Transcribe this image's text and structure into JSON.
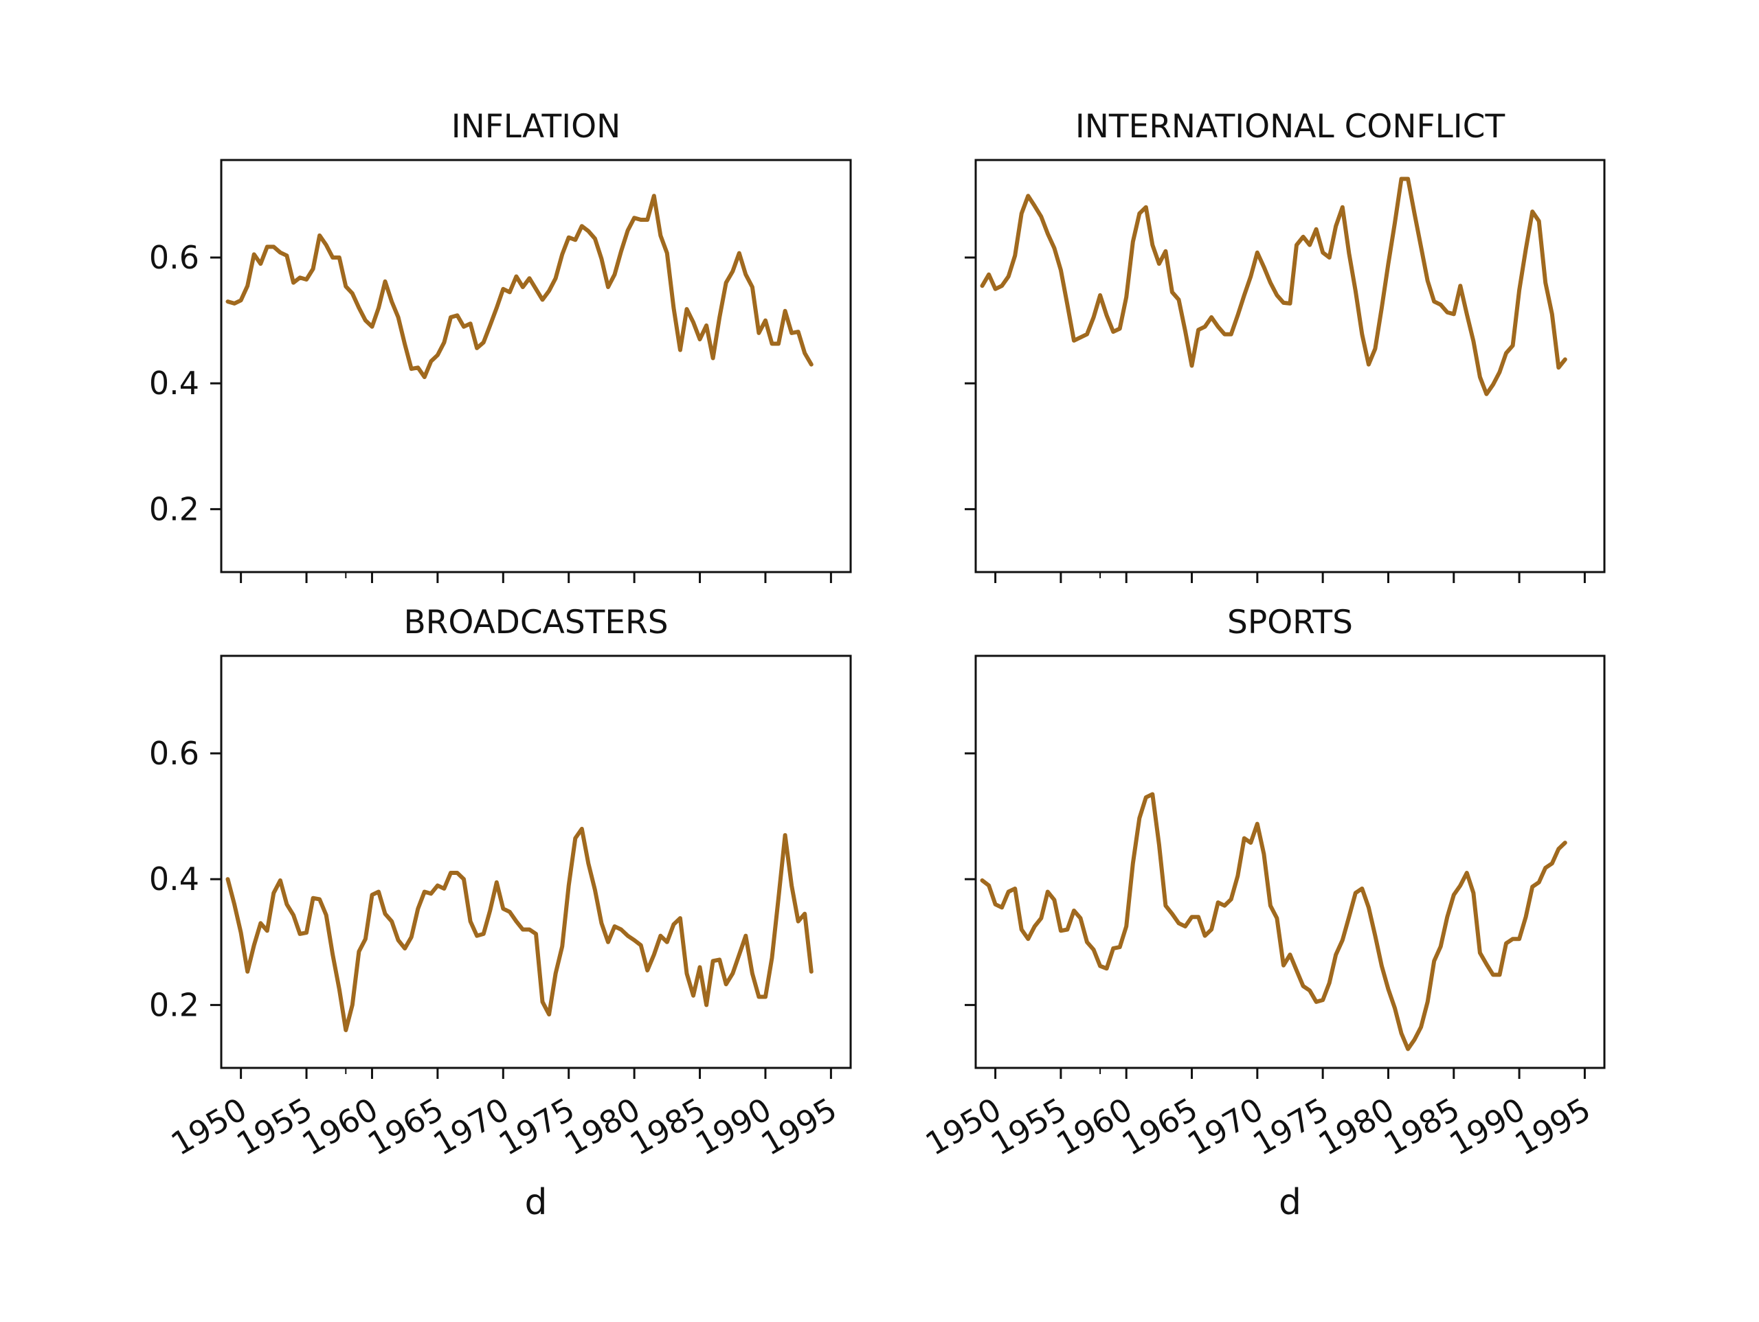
{
  "chart_data": {
    "type": "line",
    "layout": "2x2 small multiples, shared x and y axes",
    "series_color": "#A0691E",
    "grid": false,
    "xlim_years": [
      1948.5,
      1996.5
    ],
    "ylim": [
      0.1,
      0.755
    ],
    "x_ticks": [
      "1950",
      "1955",
      "1960",
      "1965",
      "1970",
      "1975",
      "1980",
      "1985",
      "1990",
      "1995"
    ],
    "y_ticks": [
      "0.2",
      "0.4",
      "0.6"
    ],
    "xlabel": "d",
    "x_start_year": 1949.0,
    "x_step_years": 0.5,
    "panels": [
      {
        "title": "INFLATION",
        "values": [
          0.53,
          0.527,
          0.532,
          0.555,
          0.605,
          0.59,
          0.617,
          0.617,
          0.608,
          0.603,
          0.56,
          0.568,
          0.565,
          0.582,
          0.635,
          0.62,
          0.6,
          0.6,
          0.554,
          0.543,
          0.52,
          0.5,
          0.49,
          0.52,
          0.562,
          0.53,
          0.505,
          0.462,
          0.423,
          0.425,
          0.41,
          0.435,
          0.445,
          0.465,
          0.505,
          0.508,
          0.49,
          0.495,
          0.456,
          0.465,
          0.492,
          0.52,
          0.55,
          0.545,
          0.57,
          0.553,
          0.567,
          0.55,
          0.533,
          0.547,
          0.567,
          0.605,
          0.632,
          0.628,
          0.65,
          0.642,
          0.63,
          0.598,
          0.553,
          0.573,
          0.61,
          0.643,
          0.663,
          0.66,
          0.66,
          0.698,
          0.635,
          0.607,
          0.52,
          0.453,
          0.518,
          0.497,
          0.47,
          0.492,
          0.44,
          0.505,
          0.56,
          0.578,
          0.607,
          0.573,
          0.553,
          0.48,
          0.5,
          0.463,
          0.463,
          0.515,
          0.48,
          0.482,
          0.448,
          0.43
        ]
      },
      {
        "title": "INTERNATIONAL CONFLICT",
        "values": [
          0.555,
          0.573,
          0.55,
          0.555,
          0.57,
          0.603,
          0.67,
          0.698,
          0.682,
          0.665,
          0.638,
          0.615,
          0.58,
          0.525,
          0.468,
          0.473,
          0.478,
          0.505,
          0.54,
          0.508,
          0.482,
          0.487,
          0.537,
          0.625,
          0.67,
          0.68,
          0.62,
          0.59,
          0.61,
          0.545,
          0.533,
          0.483,
          0.428,
          0.485,
          0.49,
          0.505,
          0.49,
          0.478,
          0.478,
          0.508,
          0.54,
          0.57,
          0.608,
          0.585,
          0.56,
          0.54,
          0.528,
          0.527,
          0.62,
          0.633,
          0.62,
          0.645,
          0.608,
          0.6,
          0.65,
          0.68,
          0.607,
          0.547,
          0.478,
          0.43,
          0.455,
          0.52,
          0.59,
          0.655,
          0.725,
          0.725,
          0.67,
          0.617,
          0.563,
          0.53,
          0.525,
          0.513,
          0.51,
          0.555,
          0.51,
          0.467,
          0.41,
          0.383,
          0.398,
          0.418,
          0.448,
          0.46,
          0.548,
          0.613,
          0.673,
          0.658,
          0.56,
          0.51,
          0.425,
          0.438
        ]
      },
      {
        "title": "BROADCASTERS",
        "values": [
          0.4,
          0.36,
          0.315,
          0.253,
          0.295,
          0.33,
          0.318,
          0.378,
          0.398,
          0.36,
          0.343,
          0.313,
          0.315,
          0.37,
          0.368,
          0.343,
          0.28,
          0.225,
          0.16,
          0.2,
          0.285,
          0.305,
          0.375,
          0.38,
          0.345,
          0.333,
          0.303,
          0.29,
          0.308,
          0.353,
          0.38,
          0.377,
          0.39,
          0.385,
          0.41,
          0.41,
          0.4,
          0.333,
          0.31,
          0.313,
          0.35,
          0.395,
          0.353,
          0.348,
          0.333,
          0.32,
          0.32,
          0.313,
          0.205,
          0.185,
          0.25,
          0.293,
          0.39,
          0.465,
          0.48,
          0.425,
          0.383,
          0.33,
          0.3,
          0.325,
          0.32,
          0.31,
          0.303,
          0.295,
          0.255,
          0.28,
          0.31,
          0.3,
          0.328,
          0.338,
          0.25,
          0.215,
          0.26,
          0.2,
          0.27,
          0.272,
          0.233,
          0.25,
          0.28,
          0.31,
          0.25,
          0.213,
          0.213,
          0.275,
          0.37,
          0.47,
          0.39,
          0.333,
          0.345,
          0.253
        ]
      },
      {
        "title": "SPORTS",
        "values": [
          0.398,
          0.39,
          0.36,
          0.355,
          0.38,
          0.385,
          0.32,
          0.305,
          0.325,
          0.338,
          0.38,
          0.367,
          0.318,
          0.32,
          0.35,
          0.338,
          0.3,
          0.288,
          0.262,
          0.258,
          0.29,
          0.292,
          0.325,
          0.425,
          0.497,
          0.53,
          0.535,
          0.455,
          0.358,
          0.345,
          0.33,
          0.325,
          0.34,
          0.34,
          0.31,
          0.32,
          0.363,
          0.358,
          0.368,
          0.405,
          0.465,
          0.458,
          0.488,
          0.44,
          0.358,
          0.338,
          0.263,
          0.28,
          0.255,
          0.23,
          0.223,
          0.205,
          0.208,
          0.235,
          0.28,
          0.303,
          0.34,
          0.378,
          0.385,
          0.355,
          0.31,
          0.262,
          0.225,
          0.195,
          0.155,
          0.13,
          0.145,
          0.165,
          0.205,
          0.27,
          0.293,
          0.34,
          0.375,
          0.39,
          0.41,
          0.378,
          0.283,
          0.265,
          0.248,
          0.248,
          0.298,
          0.305,
          0.305,
          0.34,
          0.388,
          0.395,
          0.418,
          0.425,
          0.448,
          0.458
        ]
      }
    ]
  }
}
